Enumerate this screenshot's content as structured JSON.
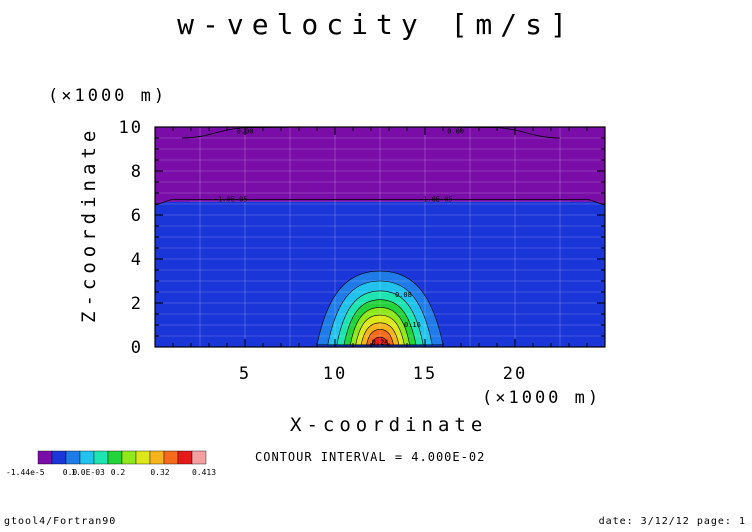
{
  "header": {
    "title": "w-velocity [m/s]"
  },
  "colors": {
    "band0": "#7a0da8",
    "band1": "#1a35d8",
    "band2": "#1f7be8",
    "band3": "#21c3ee",
    "band4": "#1ee4b2",
    "band5": "#22d33a",
    "band6": "#8ee81a",
    "band7": "#dde81b",
    "band8": "#f5b41b",
    "band9": "#f56a1b",
    "band10": "#e51b1b",
    "band11": "#f5a0a0"
  },
  "chart_data": {
    "type": "heatmap",
    "title": "w-velocity [m/s]",
    "xlabel": "X-coordinate",
    "ylabel": "Z-coordinate",
    "x_unit": "(×1000 m)",
    "y_unit": "(×1000 m)",
    "xlim": [
      0,
      25
    ],
    "ylim": [
      0,
      10
    ],
    "x_ticks": [
      5,
      10,
      15,
      20
    ],
    "y_ticks": [
      0,
      2,
      4,
      6,
      8,
      10
    ],
    "regions": [
      {
        "name": "upper layer",
        "zmin": 6.6,
        "zmax": 10,
        "band": 0
      },
      {
        "name": "lower layer",
        "zmin": 0,
        "zmax": 6.6,
        "band": 1
      }
    ],
    "updraft": {
      "center_x": 12.5,
      "base_z": 0.1,
      "shells": [
        {
          "band": 2,
          "half_width": 3.5,
          "top_z": 3.45
        },
        {
          "band": 3,
          "half_width": 2.9,
          "top_z": 3.0
        },
        {
          "band": 4,
          "half_width": 2.4,
          "top_z": 2.55
        },
        {
          "band": 5,
          "half_width": 2.0,
          "top_z": 2.15
        },
        {
          "band": 6,
          "half_width": 1.65,
          "top_z": 1.8
        },
        {
          "band": 7,
          "half_width": 1.35,
          "top_z": 1.45
        },
        {
          "band": 8,
          "half_width": 1.05,
          "top_z": 1.1
        },
        {
          "band": 9,
          "half_width": 0.75,
          "top_z": 0.8
        },
        {
          "band": 10,
          "half_width": 0.45,
          "top_z": 0.45
        }
      ]
    },
    "contour_labels": [
      {
        "x": 5.0,
        "z": 9.85,
        "text": "0.00"
      },
      {
        "x": 16.7,
        "z": 9.85,
        "text": "0.00"
      },
      {
        "x": 4.2,
        "z": 6.75,
        "text": "-1.0E-05"
      },
      {
        "x": 15.6,
        "z": 6.75,
        "text": "-1.0E-05"
      },
      {
        "x": 13.8,
        "z": 2.4,
        "text": "0.08"
      },
      {
        "x": 14.3,
        "z": 1.05,
        "text": "0.16"
      },
      {
        "x": 12.5,
        "z": 0.25,
        "text": "0.24"
      }
    ],
    "legend_labels": [
      "-1.44e-5",
      "0.0",
      "1.0E-03",
      "0.2",
      "0.32",
      "0.413"
    ],
    "contour_interval": "CONTOUR INTERVAL = 4.000E-02"
  },
  "footer": {
    "left": "gtool4/Fortran90",
    "right": "date: 3/12/12 page: 1"
  }
}
